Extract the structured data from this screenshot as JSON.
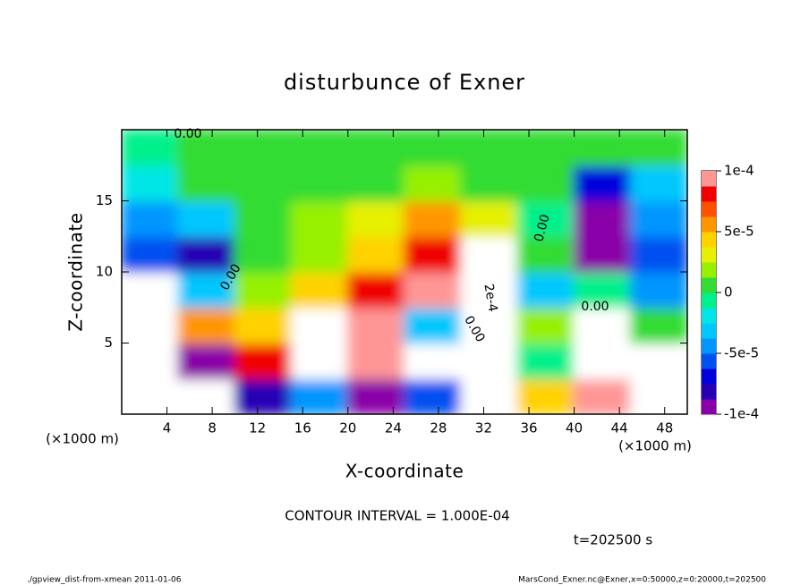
{
  "chart_data": {
    "type": "heatmap",
    "title": "disturbunce of Exner",
    "x_label": "X-coordinate",
    "y_label": "Z-coordinate",
    "x_unit": "(×1000 m)",
    "y_unit": "(×1000 m)",
    "contour_note": "CONTOUR INTERVAL = 1.000E-04",
    "time_note": "t=202500 s",
    "footer_left": "./gpview_dist-from-xmean  2011-01-06",
    "footer_right": "MarsCond_Exner.nc@Exner,x=0:50000,z=0:20000,t=202500",
    "contour_labels": [
      "0.00",
      "0.00",
      "2e-4",
      "0.00",
      "0.00",
      "0.00"
    ],
    "xlim": [
      0,
      50
    ],
    "ylim": [
      0,
      20
    ],
    "xticks": [
      4,
      8,
      12,
      16,
      20,
      24,
      28,
      32,
      36,
      40,
      44,
      48
    ],
    "yticks": [
      5,
      10,
      15
    ],
    "xbins": [
      0,
      5,
      10,
      15,
      20,
      25,
      30,
      35,
      40,
      45,
      50
    ],
    "ybins": [
      0,
      2.5,
      5,
      7.5,
      10,
      12.5,
      15,
      17.5,
      20
    ],
    "values": [
      [
        -0.00013,
        -0.00015,
        -8e-05,
        -5e-05,
        -9e-05,
        -6e-05,
        -0.00012,
        4e-05,
        0.0001,
        0.00015
      ],
      [
        -0.00014,
        -0.0001,
        8e-05,
        0.00012,
        9e-05,
        -0.00015,
        0.00018,
        -1e-05,
        -0.00015,
        0.00012
      ],
      [
        -0.00015,
        6e-05,
        4e-05,
        0.00012,
        0.0001,
        -3e-05,
        0.0002,
        2e-05,
        -0.00012,
        0
      ],
      [
        -0.00012,
        -3e-05,
        2e-05,
        4e-05,
        8e-05,
        9e-05,
        0.00015,
        -3e-05,
        -1e-05,
        -4e-05
      ],
      [
        -6e-05,
        -8e-05,
        1e-05,
        2e-05,
        4e-05,
        8e-05,
        0.00011,
        0,
        -9e-05,
        -6e-05
      ],
      [
        -4e-05,
        -3e-05,
        1e-05,
        2e-05,
        3e-05,
        6e-05,
        3e-05,
        -1e-05,
        -9e-05,
        -4e-05
      ],
      [
        -2e-05,
        0,
        1e-05,
        1e-05,
        1e-05,
        2e-05,
        1e-05,
        0,
        -7e-05,
        -3e-05
      ],
      [
        -1e-05,
        0,
        0,
        0,
        0,
        0,
        0,
        0,
        0,
        0
      ]
    ],
    "clim": [
      -0.0001,
      0.0001
    ],
    "colors": [
      "#8a00a8",
      "#2800b4",
      "#0000dc",
      "#0050f0",
      "#0096ff",
      "#00c8ff",
      "#00e6e6",
      "#00f08c",
      "#32dc32",
      "#96f000",
      "#e6f000",
      "#ffd200",
      "#ff9600",
      "#ff5000",
      "#f00000",
      "#ff9696"
    ],
    "out_of_range_color": "#ffffff",
    "cbticks": [
      {
        "value": 0.0001,
        "label": "1e-4"
      },
      {
        "value": 5e-05,
        "label": "5e-5"
      },
      0,
      {
        "value": -5e-05,
        "label": "-5e-5"
      },
      {
        "value": -0.0001,
        "label": "-1e-4"
      }
    ]
  }
}
